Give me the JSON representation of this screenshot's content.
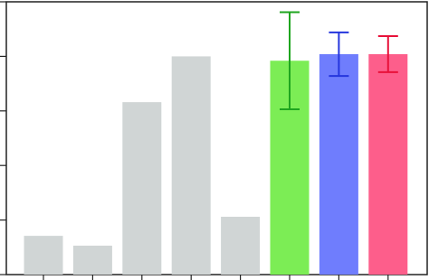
{
  "chart_data": {
    "type": "bar",
    "categories": [
      null,
      null,
      null,
      null,
      null,
      null,
      null,
      null
    ],
    "values": [
      0.71,
      0.53,
      3.16,
      4.0,
      1.06,
      3.92,
      4.04,
      4.04
    ],
    "errors": [
      null,
      null,
      null,
      null,
      null,
      0.89,
      0.4,
      0.33
    ],
    "colors": [
      "#d0d5d5",
      "#d0d5d5",
      "#d0d5d5",
      "#d0d5d5",
      "#d0d5d5",
      "#7ced55",
      "#6f7dfd",
      "#fd5e8b"
    ],
    "error_colors": [
      null,
      null,
      null,
      null,
      null,
      "#1fa51f",
      "#2536dd",
      "#e8123a"
    ],
    "ylim": [
      0,
      5
    ],
    "yticks": [
      0,
      1,
      2,
      3,
      4,
      5
    ]
  }
}
